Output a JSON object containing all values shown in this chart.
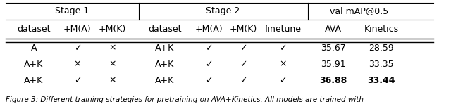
{
  "stage1_header": "Stage 1",
  "stage2_header": "Stage 2",
  "val_header": "val mAP@0.5",
  "col_headers": [
    "dataset",
    "+M(A)",
    "+M(K)",
    "dataset",
    "+M(A)",
    "+M(K)",
    "finetune",
    "AVA",
    "Kinetics"
  ],
  "rows": [
    [
      "A",
      "✓",
      "×",
      "A+K",
      "✓",
      "✓",
      "✓",
      "35.67",
      "28.59"
    ],
    [
      "A+K",
      "×",
      "×",
      "A+K",
      "✓",
      "✓",
      "×",
      "35.91",
      "33.35"
    ],
    [
      "A+K",
      "✓",
      "×",
      "A+K",
      "✓",
      "✓",
      "✓",
      "36.88",
      "33.44"
    ]
  ],
  "bold_rows": [
    2
  ],
  "bold_cols": [
    7,
    8
  ],
  "bg_color": "#ffffff",
  "text_color": "#000000",
  "font_size": 9,
  "caption": "Figure 3: Different training strategies for pretraining on AVA+Kinetics. All models are trained with"
}
